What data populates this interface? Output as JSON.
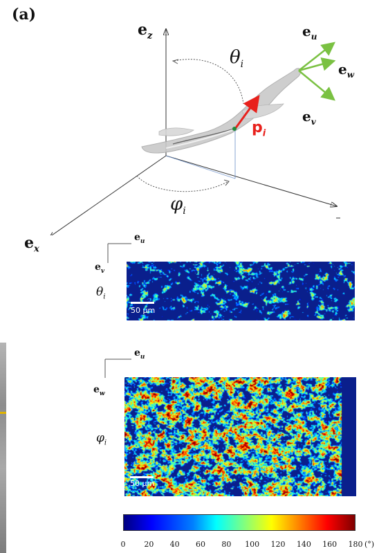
{
  "panel_label": "(a)",
  "axes": {
    "ez": {
      "base": "e",
      "sub": "z"
    },
    "ex": {
      "base": "e",
      "sub": "x"
    }
  },
  "local_axes": {
    "eu": {
      "base": "e",
      "sub": "u"
    },
    "ew": {
      "base": "e",
      "sub": "w"
    },
    "ev": {
      "base": "e",
      "sub": "v"
    }
  },
  "angles": {
    "theta": {
      "base": "θ",
      "sub": "i"
    },
    "phi": {
      "base": "φ",
      "sub": "i"
    }
  },
  "vector": {
    "base": "p",
    "sub": "i"
  },
  "maps": [
    {
      "axis_h": {
        "base": "e",
        "sub": "u"
      },
      "axis_v": {
        "base": "e",
        "sub": "v"
      },
      "angle": {
        "base": "θ",
        "sub": "i"
      },
      "scale": "50 µm",
      "seed": 7,
      "bias": 0.35
    },
    {
      "axis_h": {
        "base": "e",
        "sub": "u"
      },
      "axis_v": {
        "base": "e",
        "sub": "w"
      },
      "angle": {
        "base": "φ",
        "sub": "i"
      },
      "scale": "50 µm",
      "seed": 13,
      "bias": 0.55
    }
  ],
  "colorbar": {
    "ticks": [
      "0",
      "20",
      "40",
      "60",
      "80",
      "100",
      "120",
      "140",
      "160",
      "180"
    ],
    "unit": "(°)",
    "range": [
      0,
      180
    ]
  },
  "colors": {
    "vector": "#e8211c",
    "local_axes": "#7ac142",
    "map_bg": "#0a1f8c"
  }
}
